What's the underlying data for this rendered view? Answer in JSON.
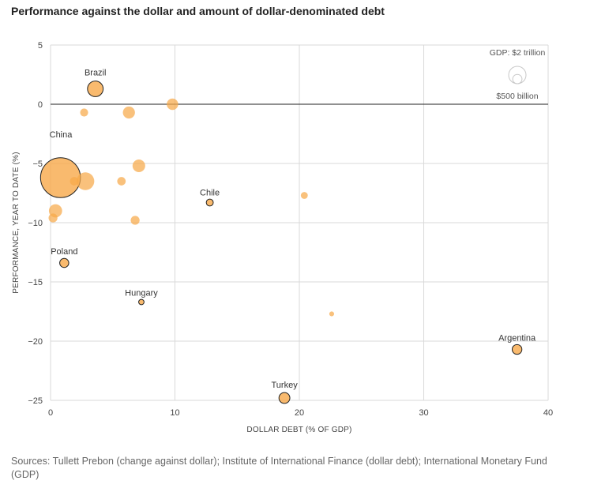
{
  "title": "Performance against the dollar and amount of dollar-denominated debt",
  "source": "Sources: Tullett Prebon (change against dollar); Institute of International Finance (dollar debt); International Monetary Fund (GDP)",
  "colors": {
    "bubble": "#f7a94a",
    "highlight_stroke": "#222222",
    "zero_line": "#222222",
    "grid": "#d9d9d9"
  },
  "chart_data": {
    "type": "scatter",
    "title": "Performance against the dollar and amount of dollar-denominated debt",
    "xlabel": "DOLLAR DEBT (% OF GDP)",
    "ylabel": "PERFORMANCE, YEAR TO DATE (%)",
    "xlim": [
      0,
      40
    ],
    "ylim": [
      -25,
      5
    ],
    "xticks": [
      0,
      10,
      20,
      30,
      40
    ],
    "yticks": [
      5,
      0,
      -5,
      -10,
      -15,
      -20,
      -25
    ],
    "grid": true,
    "size_encoding": "GDP",
    "size_legend": [
      {
        "label": "GDP: $2 trillion",
        "gdp_trillion": 2
      },
      {
        "label": "$500 billion",
        "gdp_trillion": 0.5
      }
    ],
    "points": [
      {
        "name": "China",
        "x": 0.8,
        "y": -6.2,
        "gdp_trillion": 11.5,
        "labeled": true
      },
      {
        "name": "Brazil",
        "x": 3.6,
        "y": 1.3,
        "gdp_trillion": 1.6,
        "labeled": true
      },
      {
        "name": "Chile",
        "x": 12.8,
        "y": -8.3,
        "gdp_trillion": 0.25,
        "labeled": true
      },
      {
        "name": "Poland",
        "x": 1.1,
        "y": -13.4,
        "gdp_trillion": 0.47,
        "labeled": true
      },
      {
        "name": "Hungary",
        "x": 7.3,
        "y": -16.7,
        "gdp_trillion": 0.13,
        "labeled": true
      },
      {
        "name": "Argentina",
        "x": 37.5,
        "y": -20.7,
        "gdp_trillion": 0.55,
        "labeled": true
      },
      {
        "name": "Turkey",
        "x": 18.8,
        "y": -24.8,
        "gdp_trillion": 0.72,
        "labeled": true
      },
      {
        "name": "",
        "x": 2.8,
        "y": -6.5,
        "gdp_trillion": 2.1,
        "labeled": false
      },
      {
        "name": "",
        "x": 6.3,
        "y": -0.7,
        "gdp_trillion": 0.9,
        "labeled": false
      },
      {
        "name": "",
        "x": 9.8,
        "y": 0.0,
        "gdp_trillion": 0.8,
        "labeled": false
      },
      {
        "name": "",
        "x": 2.7,
        "y": -0.7,
        "gdp_trillion": 0.35,
        "labeled": false
      },
      {
        "name": "",
        "x": 7.1,
        "y": -5.2,
        "gdp_trillion": 1.0,
        "labeled": false
      },
      {
        "name": "",
        "x": 5.7,
        "y": -6.5,
        "gdp_trillion": 0.4,
        "labeled": false
      },
      {
        "name": "",
        "x": 1.9,
        "y": -6.5,
        "gdp_trillion": 0.4,
        "labeled": false
      },
      {
        "name": "",
        "x": 0.4,
        "y": -9.0,
        "gdp_trillion": 1.1,
        "labeled": false
      },
      {
        "name": "",
        "x": 0.2,
        "y": -9.6,
        "gdp_trillion": 0.45,
        "labeled": false
      },
      {
        "name": "",
        "x": 6.8,
        "y": -9.8,
        "gdp_trillion": 0.45,
        "labeled": false
      },
      {
        "name": "",
        "x": 20.4,
        "y": -7.7,
        "gdp_trillion": 0.25,
        "labeled": false
      },
      {
        "name": "",
        "x": 22.6,
        "y": -17.7,
        "gdp_trillion": 0.1,
        "labeled": false
      }
    ]
  }
}
